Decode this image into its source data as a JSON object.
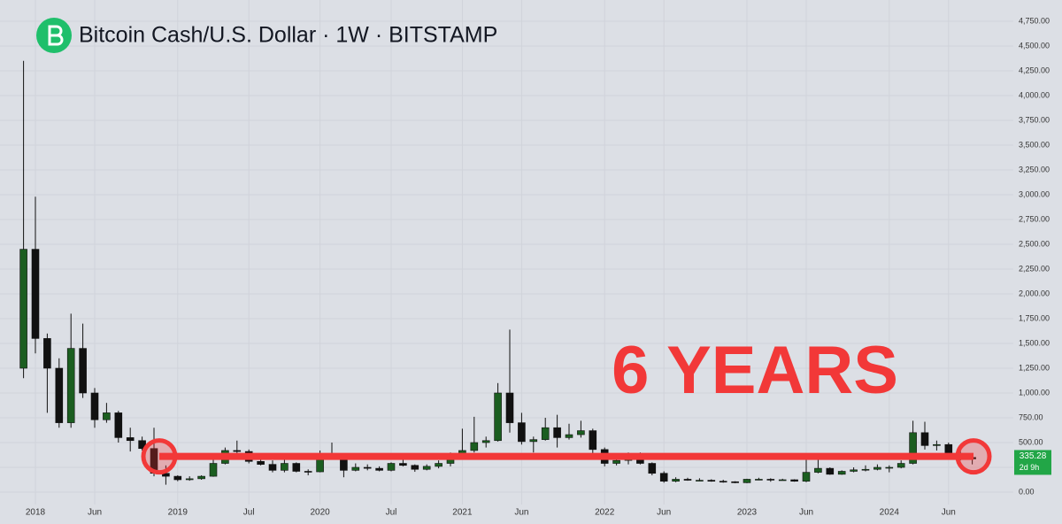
{
  "chart_data": {
    "type": "candlestick",
    "title": "Bitcoin Cash/U.S. Dollar · 1W · BITSTAMP",
    "categories": [
      null,
      "2018",
      null,
      null,
      null,
      null,
      "Jun",
      null,
      null,
      null,
      null,
      null,
      null,
      "2019",
      null,
      null,
      null,
      null,
      null,
      "Jul",
      null,
      null,
      null,
      null,
      null,
      "2020",
      null,
      null,
      null,
      null,
      null,
      "Jul",
      null,
      null,
      null,
      null,
      null,
      "2021",
      null,
      null,
      null,
      null,
      "Jun",
      null,
      null,
      null,
      null,
      null,
      null,
      "2022",
      null,
      null,
      null,
      null,
      "Jun",
      null,
      null,
      null,
      null,
      null,
      null,
      "2023",
      null,
      null,
      null,
      null,
      "Jun",
      null,
      null,
      null,
      null,
      null,
      null,
      "2024",
      null,
      null,
      null,
      null,
      "Jun",
      null,
      null
    ],
    "open": [
      1250,
      2450,
      1550,
      1250,
      700,
      1450,
      1000,
      730,
      800,
      550,
      520,
      440,
      190,
      160,
      125,
      135,
      160,
      290,
      420,
      410,
      310,
      280,
      220,
      290,
      210,
      205,
      380,
      330,
      220,
      250,
      240,
      220,
      290,
      270,
      230,
      260,
      290,
      340,
      420,
      500,
      520,
      1000,
      700,
      510,
      530,
      650,
      550,
      580,
      620,
      430,
      290,
      320,
      380,
      290,
      190,
      110,
      130,
      120,
      120,
      110,
      105,
      95,
      130,
      130,
      125,
      125,
      110,
      200,
      240,
      180,
      210,
      225,
      230,
      250,
      250,
      290,
      600,
      470,
      480,
      380,
      350
    ],
    "high": [
      4350,
      2980,
      1600,
      1350,
      1800,
      1700,
      1050,
      900,
      820,
      650,
      560,
      650,
      270,
      170,
      160,
      170,
      330,
      450,
      520,
      430,
      360,
      320,
      330,
      300,
      230,
      420,
      500,
      350,
      290,
      280,
      260,
      300,
      330,
      280,
      280,
      320,
      400,
      640,
      760,
      560,
      1100,
      1640,
      800,
      560,
      750,
      780,
      690,
      720,
      640,
      450,
      380,
      400,
      400,
      300,
      210,
      150,
      145,
      140,
      130,
      125,
      110,
      135,
      145,
      140,
      135,
      130,
      330,
      330,
      250,
      220,
      250,
      270,
      280,
      270,
      320,
      720,
      710,
      520,
      500,
      450,
      380
    ],
    "low": [
      1150,
      1400,
      800,
      650,
      650,
      950,
      650,
      700,
      500,
      410,
      420,
      160,
      75,
      110,
      115,
      125,
      155,
      280,
      380,
      290,
      270,
      200,
      200,
      200,
      170,
      200,
      350,
      150,
      210,
      220,
      210,
      210,
      260,
      205,
      220,
      240,
      260,
      330,
      400,
      450,
      510,
      600,
      480,
      400,
      520,
      450,
      530,
      550,
      380,
      260,
      270,
      280,
      280,
      170,
      95,
      100,
      115,
      110,
      105,
      95,
      90,
      90,
      120,
      105,
      120,
      105,
      100,
      190,
      175,
      175,
      200,
      210,
      220,
      200,
      240,
      280,
      430,
      420,
      350,
      320,
      280
    ],
    "close": [
      2450,
      1550,
      1250,
      700,
      1450,
      1000,
      730,
      800,
      550,
      520,
      440,
      190,
      160,
      125,
      135,
      160,
      290,
      420,
      410,
      310,
      280,
      220,
      290,
      210,
      205,
      380,
      330,
      220,
      250,
      240,
      220,
      290,
      270,
      230,
      260,
      290,
      340,
      420,
      500,
      520,
      1000,
      700,
      510,
      530,
      650,
      550,
      580,
      620,
      430,
      290,
      320,
      380,
      290,
      190,
      110,
      130,
      120,
      120,
      110,
      105,
      95,
      130,
      130,
      125,
      125,
      110,
      200,
      240,
      180,
      210,
      225,
      230,
      250,
      250,
      290,
      600,
      470,
      480,
      380,
      350,
      335.28
    ],
    "up_color": "#1b5e20",
    "down_color": "#111111",
    "ylim": [
      0,
      4750
    ],
    "yticks": [
      {
        "value": 0,
        "label": "0.00"
      },
      {
        "value": 250,
        "label": "250.00"
      },
      {
        "value": 500,
        "label": "500.00"
      },
      {
        "value": 750,
        "label": "750.00"
      },
      {
        "value": 1000,
        "label": "1,000.00"
      },
      {
        "value": 1250,
        "label": "1,250.00"
      },
      {
        "value": 1500,
        "label": "1,500.00"
      },
      {
        "value": 1750,
        "label": "1,750.00"
      },
      {
        "value": 2000,
        "label": "2,000.00"
      },
      {
        "value": 2250,
        "label": "2,250.00"
      },
      {
        "value": 2500,
        "label": "2,500.00"
      },
      {
        "value": 2750,
        "label": "2,750.00"
      },
      {
        "value": 3000,
        "label": "3,000.00"
      },
      {
        "value": 3250,
        "label": "3,250.00"
      },
      {
        "value": 3500,
        "label": "3,500.00"
      },
      {
        "value": 3750,
        "label": "3,750.00"
      },
      {
        "value": 4000,
        "label": "4,000.00"
      },
      {
        "value": 4250,
        "label": "4,250.00"
      },
      {
        "value": 4500,
        "label": "4,500.00"
      },
      {
        "value": 4750,
        "label": "4,750.00"
      }
    ],
    "grid": true,
    "level": {
      "value": 360,
      "color": "#f23838"
    },
    "annotation": {
      "text": "6 YEARS",
      "color": "#f23838"
    },
    "countdown": "2d 9h",
    "price_tag_color": "#22a647"
  }
}
